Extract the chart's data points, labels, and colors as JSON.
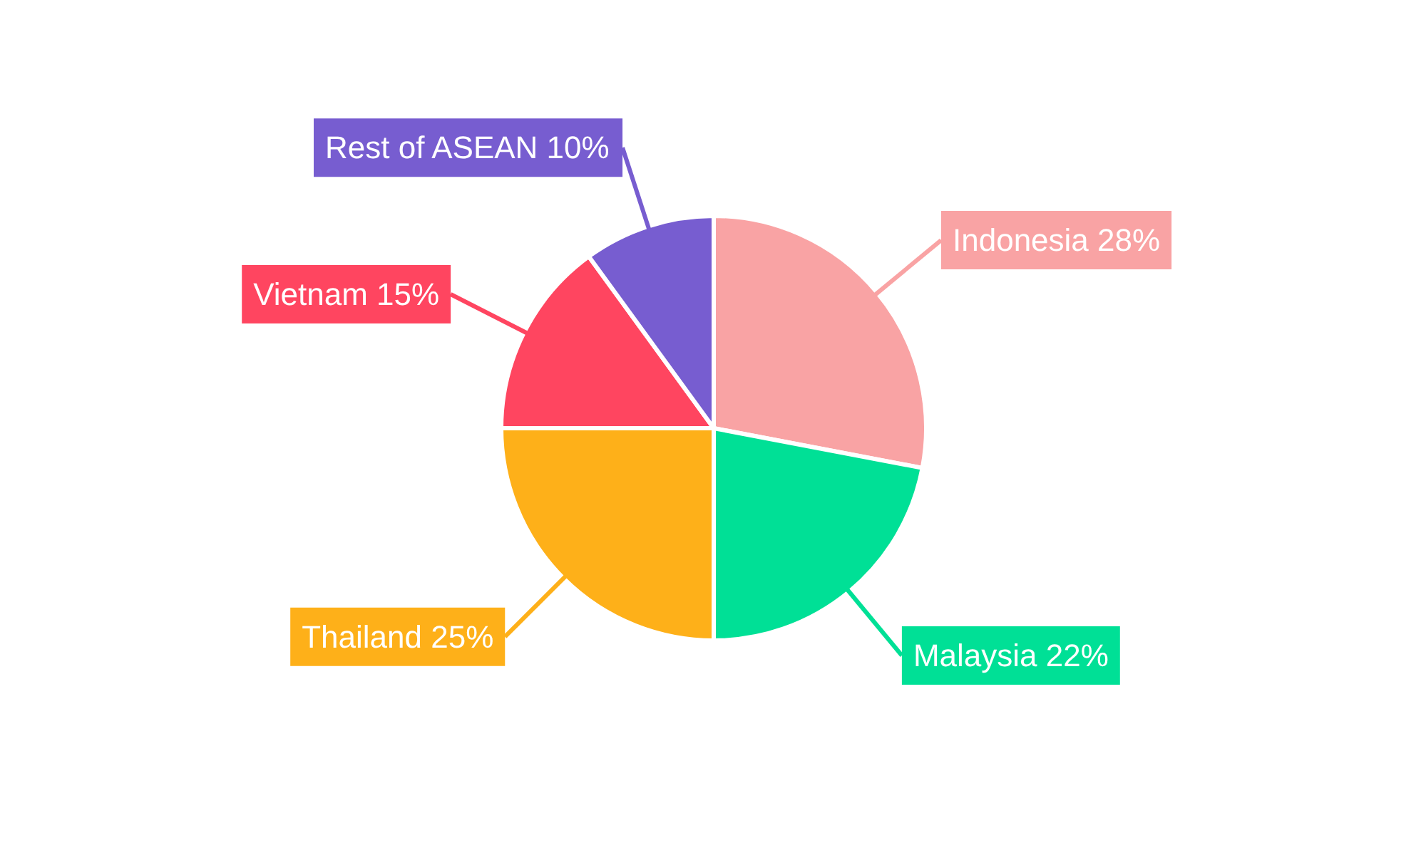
{
  "chart_data": {
    "type": "pie",
    "categories": [
      "Indonesia",
      "Malaysia",
      "Thailand",
      "Vietnam",
      "Rest of ASEAN"
    ],
    "values": [
      28,
      22,
      25,
      15,
      10
    ],
    "value_labels": [
      "28%",
      "22%",
      "25%",
      "15%",
      "10%"
    ],
    "colors": [
      "#f9a3a4",
      "#00e096",
      "#feb019",
      "#ff4560",
      "#775dd0"
    ]
  }
}
